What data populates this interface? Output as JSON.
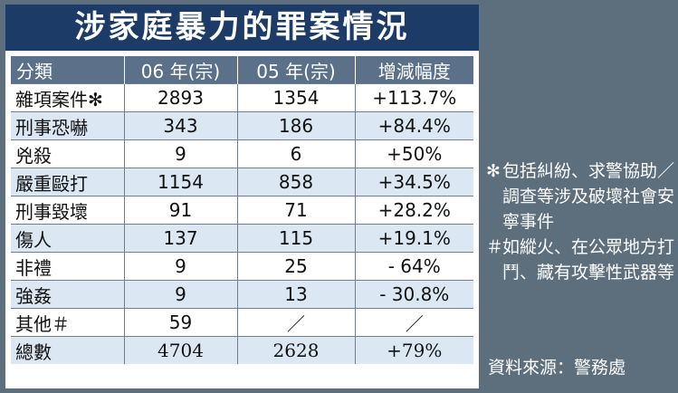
{
  "title": "涉家庭暴力的罪案情況",
  "table": {
    "headers": [
      "分類",
      "06 年(宗)",
      "05 年(宗)",
      "增減幅度"
    ],
    "rows": [
      {
        "category": "雜項案件✻",
        "y06": "2893",
        "y05": "1354",
        "change": "+113.7%"
      },
      {
        "category": "刑事恐嚇",
        "y06": "343",
        "y05": "186",
        "change": "+84.4%"
      },
      {
        "category": "兇殺",
        "y06": "9",
        "y05": "6",
        "change": "+50%"
      },
      {
        "category": "嚴重毆打",
        "y06": "1154",
        "y05": "858",
        "change": "+34.5%"
      },
      {
        "category": "刑事毀壞",
        "y06": "91",
        "y05": "71",
        "change": "+28.2%"
      },
      {
        "category": "傷人",
        "y06": "137",
        "y05": "115",
        "change": "+19.1%"
      },
      {
        "category": "非禮",
        "y06": "9",
        "y05": "25",
        "change": "- 64%"
      },
      {
        "category": "強姦",
        "y06": "9",
        "y05": "13",
        "change": "- 30.8%"
      },
      {
        "category": "其他＃",
        "y06": "59",
        "y05": "／",
        "change": "／"
      },
      {
        "category": "總數",
        "y06": "4704",
        "y05": "2628",
        "change": "+79%"
      }
    ]
  },
  "notes": [
    {
      "mark": "✻",
      "text": "包括糾紛、求警協助／調查等涉及破壞社會安寧事件"
    },
    {
      "mark": "＃",
      "text": "如縱火、在公眾地方打鬥、藏有攻擊性武器等"
    }
  ],
  "source": "資料來源：警務處",
  "colors": {
    "background": "#5d6f7d",
    "title_bar": "#1c3c67",
    "header_row": "#5b7189",
    "shaded_row": "#dbe8f3"
  }
}
